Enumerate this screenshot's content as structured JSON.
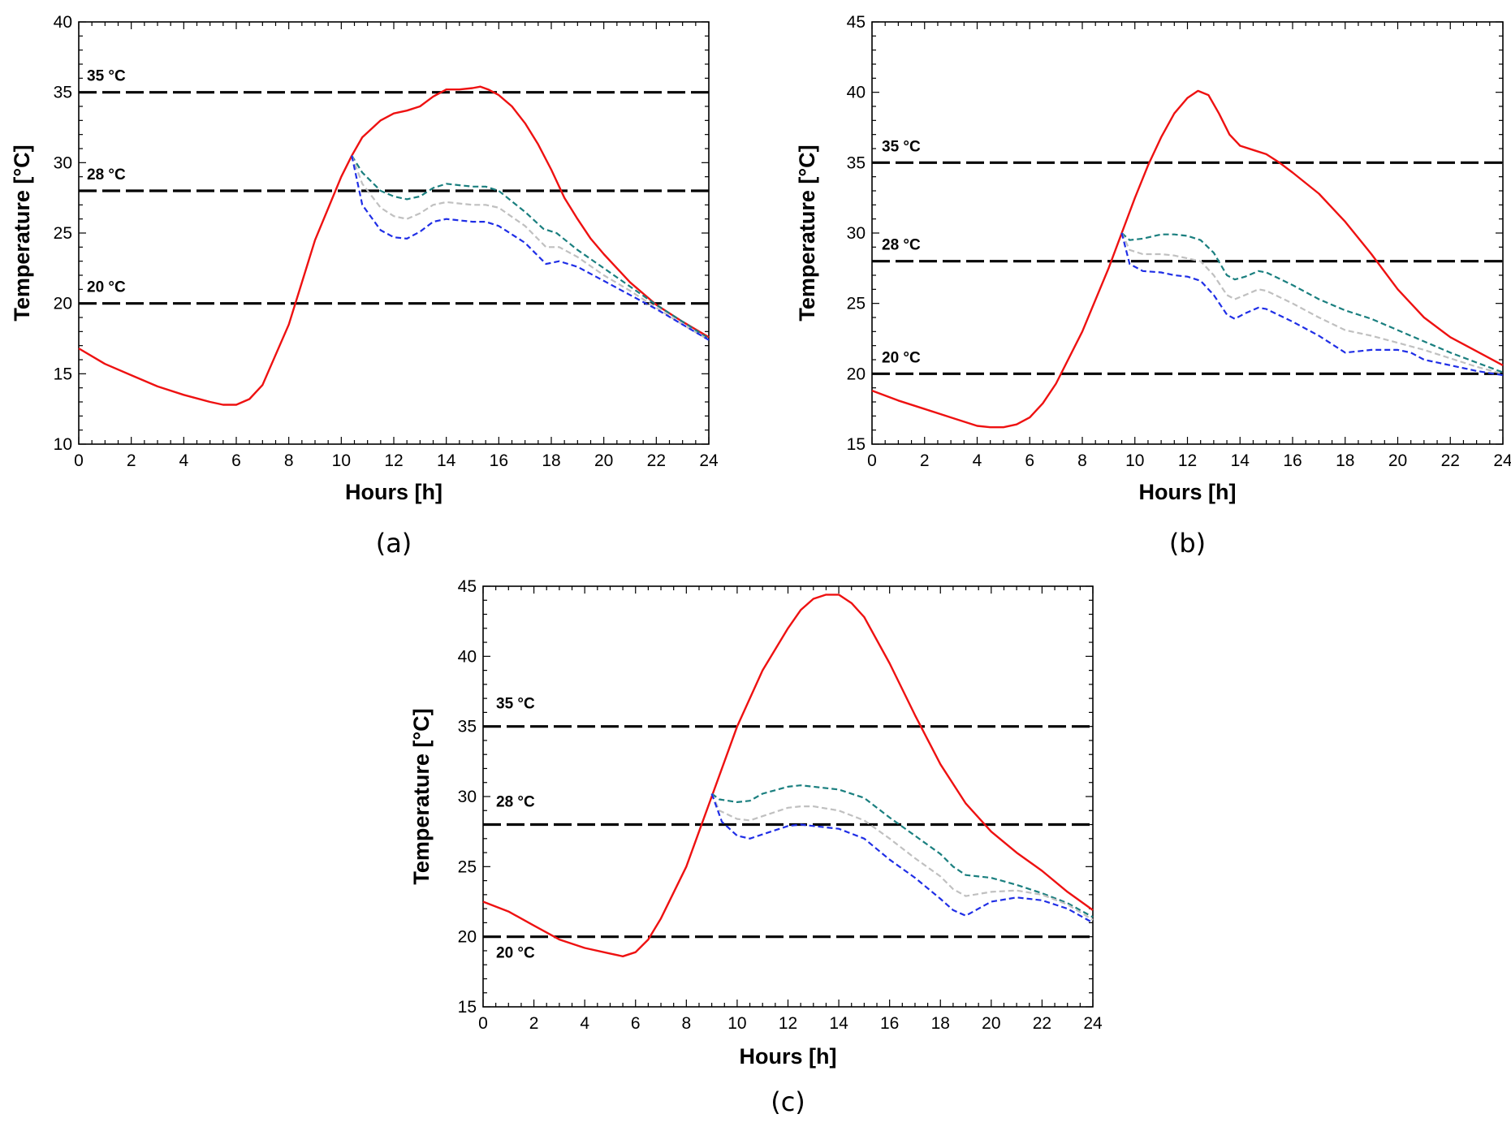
{
  "chart_data": [
    {
      "type": "line",
      "panel_label": "(a)",
      "xlabel": "Hours  [h]",
      "ylabel": "Temperature [°C]",
      "xlim": [
        0,
        24
      ],
      "ylim": [
        10,
        40
      ],
      "xticks": [
        0,
        2,
        4,
        6,
        8,
        10,
        12,
        14,
        16,
        18,
        20,
        22,
        24
      ],
      "yticks": [
        10,
        15,
        20,
        25,
        30,
        35,
        40
      ],
      "reference_lines": [
        {
          "y": 35,
          "label": "35 °C"
        },
        {
          "y": 28,
          "label": "28 °C"
        },
        {
          "y": 20,
          "label": "20 °C"
        }
      ],
      "series": [
        {
          "color": "#ee1111",
          "style": "solid",
          "x": [
            0,
            1,
            2,
            3,
            4,
            5,
            5.5,
            6,
            6.5,
            7,
            8,
            9,
            10,
            10.4,
            10.8,
            11.5,
            12,
            12.5,
            13,
            13.5,
            14,
            14.5,
            15,
            15.3,
            15.6,
            16,
            16.5,
            17,
            17.5,
            18,
            18.5,
            19,
            19.5,
            20,
            21,
            22,
            23,
            24
          ],
          "y": [
            16.8,
            15.7,
            14.9,
            14.1,
            13.5,
            13.0,
            12.8,
            12.8,
            13.2,
            14.2,
            18.5,
            24.5,
            29.0,
            30.5,
            31.8,
            33.0,
            33.5,
            33.7,
            34.0,
            34.7,
            35.2,
            35.2,
            35.3,
            35.4,
            35.2,
            34.8,
            34.0,
            32.8,
            31.3,
            29.5,
            27.5,
            26.0,
            24.6,
            23.5,
            21.5,
            19.9,
            18.7,
            17.6
          ]
        },
        {
          "color": "#1a7f7f",
          "style": "dashed",
          "x": [
            10.4,
            10.8,
            11.5,
            12,
            12.5,
            13,
            13.5,
            14,
            14.5,
            15,
            15.5,
            16,
            17,
            17.7,
            18.2,
            19,
            20,
            21,
            22,
            23,
            24
          ],
          "y": [
            30.5,
            29.3,
            28.0,
            27.6,
            27.4,
            27.6,
            28.2,
            28.5,
            28.4,
            28.3,
            28.3,
            28.0,
            26.5,
            25.3,
            25.0,
            23.8,
            22.5,
            21.2,
            19.9,
            18.7,
            17.5
          ]
        },
        {
          "color": "#c0c0c0",
          "style": "dashed",
          "x": [
            10.4,
            10.8,
            11.5,
            12,
            12.5,
            13,
            13.5,
            14,
            14.5,
            15,
            15.5,
            16,
            17,
            17.8,
            18.3,
            19,
            20,
            21,
            22,
            23,
            24
          ],
          "y": [
            30.5,
            28.5,
            26.8,
            26.2,
            26.0,
            26.4,
            27.0,
            27.2,
            27.1,
            27.0,
            27.0,
            26.8,
            25.5,
            24.0,
            24.0,
            23.3,
            22.0,
            20.9,
            19.7,
            18.5,
            17.4
          ]
        },
        {
          "color": "#1f2ee6",
          "style": "dashed",
          "x": [
            10.4,
            10.8,
            11.5,
            12,
            12.5,
            13,
            13.5,
            14,
            14.5,
            15,
            15.5,
            16,
            17,
            17.8,
            18.3,
            19,
            20,
            21,
            22,
            23,
            24
          ],
          "y": [
            30.5,
            27.0,
            25.2,
            24.7,
            24.6,
            25.1,
            25.8,
            26.0,
            25.9,
            25.8,
            25.8,
            25.5,
            24.3,
            22.8,
            23.0,
            22.6,
            21.6,
            20.6,
            19.6,
            18.5,
            17.4
          ]
        }
      ]
    },
    {
      "type": "line",
      "panel_label": "(b)",
      "xlabel": "Hours  [h]",
      "ylabel": "Temperature [°C]",
      "xlim": [
        0,
        24
      ],
      "ylim": [
        15,
        45
      ],
      "xticks": [
        0,
        2,
        4,
        6,
        8,
        10,
        12,
        14,
        16,
        18,
        20,
        22,
        24
      ],
      "yticks": [
        15,
        20,
        25,
        30,
        35,
        40,
        45
      ],
      "reference_lines": [
        {
          "y": 35,
          "label": "35 °C"
        },
        {
          "y": 28,
          "label": "28 °C"
        },
        {
          "y": 20,
          "label": "20 °C"
        }
      ],
      "series": [
        {
          "color": "#ee1111",
          "style": "solid",
          "x": [
            0,
            1,
            2,
            3,
            4,
            4.5,
            5,
            5.5,
            6,
            6.5,
            7,
            8,
            9,
            9.5,
            10,
            10.5,
            11,
            11.5,
            12,
            12.4,
            12.8,
            13.2,
            13.6,
            14,
            14.5,
            15,
            15.5,
            16,
            17,
            18,
            19,
            20,
            21,
            22,
            23,
            24
          ],
          "y": [
            18.8,
            18.1,
            17.5,
            16.9,
            16.3,
            16.2,
            16.2,
            16.4,
            16.9,
            17.9,
            19.3,
            23.0,
            27.5,
            30.0,
            32.5,
            34.8,
            36.8,
            38.5,
            39.6,
            40.1,
            39.8,
            38.5,
            37.0,
            36.2,
            35.9,
            35.6,
            35.0,
            34.3,
            32.8,
            30.8,
            28.5,
            26.0,
            24.0,
            22.6,
            21.6,
            20.6
          ]
        },
        {
          "color": "#1a7f7f",
          "style": "dashed",
          "x": [
            9.5,
            9.8,
            10.3,
            11,
            11.5,
            12,
            12.5,
            13,
            13.5,
            13.8,
            14.2,
            14.7,
            15,
            16,
            17,
            18,
            19,
            20,
            21,
            22,
            23,
            24
          ],
          "y": [
            30.0,
            29.5,
            29.6,
            29.9,
            29.9,
            29.8,
            29.5,
            28.6,
            27.0,
            26.7,
            26.9,
            27.3,
            27.2,
            26.3,
            25.3,
            24.5,
            23.9,
            23.1,
            22.3,
            21.5,
            20.8,
            20.1
          ]
        },
        {
          "color": "#c0c0c0",
          "style": "dashed",
          "x": [
            9.5,
            9.8,
            10.3,
            11,
            11.5,
            12,
            12.5,
            13,
            13.5,
            13.8,
            14.2,
            14.7,
            15,
            16,
            17,
            18,
            19,
            20,
            21,
            22,
            23,
            24
          ],
          "y": [
            30.0,
            28.8,
            28.5,
            28.5,
            28.4,
            28.2,
            28.0,
            27.0,
            25.6,
            25.3,
            25.6,
            26.0,
            25.9,
            25.0,
            24.0,
            23.1,
            22.7,
            22.2,
            21.7,
            21.1,
            20.5,
            20.0
          ]
        },
        {
          "color": "#1f2ee6",
          "style": "dashed",
          "x": [
            9.5,
            9.8,
            10.3,
            11,
            11.5,
            12,
            12.5,
            13,
            13.5,
            13.8,
            14.2,
            14.7,
            15,
            16,
            17,
            18,
            19,
            20,
            20.5,
            21,
            22,
            23,
            24
          ],
          "y": [
            30.0,
            27.8,
            27.3,
            27.2,
            27.0,
            26.9,
            26.6,
            25.6,
            24.2,
            23.9,
            24.3,
            24.7,
            24.6,
            23.7,
            22.7,
            21.5,
            21.7,
            21.7,
            21.5,
            21.0,
            20.6,
            20.2,
            19.9
          ]
        }
      ]
    },
    {
      "type": "line",
      "panel_label": "(c)",
      "xlabel": "Hours  [h]",
      "ylabel": "Temperature [°C]",
      "xlim": [
        0,
        24
      ],
      "ylim": [
        15,
        45
      ],
      "xticks": [
        0,
        2,
        4,
        6,
        8,
        10,
        12,
        14,
        16,
        18,
        20,
        22,
        24
      ],
      "yticks": [
        15,
        20,
        25,
        30,
        35,
        40,
        45
      ],
      "reference_lines": [
        {
          "y": 35,
          "label": "35 °C"
        },
        {
          "y": 28,
          "label": "28 °C"
        },
        {
          "y": 20,
          "label": "20 °C"
        }
      ],
      "series": [
        {
          "color": "#ee1111",
          "style": "solid",
          "x": [
            0,
            1,
            2,
            3,
            4,
            5,
            5.5,
            6,
            6.5,
            7,
            8,
            9,
            10,
            11,
            12,
            12.5,
            13,
            13.5,
            14,
            14.5,
            15,
            16,
            17,
            18,
            19,
            20,
            21,
            22,
            23,
            24
          ],
          "y": [
            22.5,
            21.8,
            20.8,
            19.8,
            19.2,
            18.8,
            18.6,
            18.9,
            19.8,
            21.3,
            25.0,
            30.0,
            35.0,
            39.0,
            42.0,
            43.3,
            44.1,
            44.4,
            44.4,
            43.8,
            42.8,
            39.5,
            35.8,
            32.3,
            29.5,
            27.5,
            26.0,
            24.7,
            23.2,
            21.9
          ]
        },
        {
          "color": "#1a7f7f",
          "style": "dashed",
          "x": [
            9.0,
            9.3,
            10,
            10.5,
            11,
            12,
            12.5,
            13,
            14,
            15,
            16,
            17,
            18,
            18.5,
            19,
            20,
            21,
            22,
            23,
            24
          ],
          "y": [
            30.2,
            29.8,
            29.6,
            29.7,
            30.2,
            30.7,
            30.8,
            30.7,
            30.5,
            29.9,
            28.5,
            27.2,
            25.9,
            25.0,
            24.4,
            24.2,
            23.7,
            23.1,
            22.4,
            21.4
          ]
        },
        {
          "color": "#c0c0c0",
          "style": "dashed",
          "x": [
            9.0,
            9.3,
            10,
            10.5,
            11,
            12,
            12.5,
            13,
            14,
            15,
            16,
            17,
            18,
            18.5,
            19,
            20,
            21,
            22,
            23,
            24
          ],
          "y": [
            30.2,
            29.0,
            28.4,
            28.3,
            28.6,
            29.2,
            29.3,
            29.3,
            29.0,
            28.3,
            27.0,
            25.6,
            24.3,
            23.4,
            22.9,
            23.2,
            23.3,
            23.0,
            22.3,
            21.2
          ]
        },
        {
          "color": "#1f2ee6",
          "style": "dashed",
          "x": [
            9.0,
            9.4,
            10,
            10.5,
            11,
            12,
            12.5,
            13,
            14,
            15,
            16,
            17,
            18,
            18.5,
            19,
            19.5,
            20,
            21,
            22,
            23,
            24
          ],
          "y": [
            30.2,
            28.2,
            27.2,
            27.0,
            27.3,
            27.9,
            28.0,
            27.9,
            27.7,
            27.0,
            25.5,
            24.2,
            22.7,
            21.9,
            21.5,
            22.0,
            22.5,
            22.8,
            22.6,
            22.0,
            21.0
          ]
        }
      ]
    }
  ]
}
